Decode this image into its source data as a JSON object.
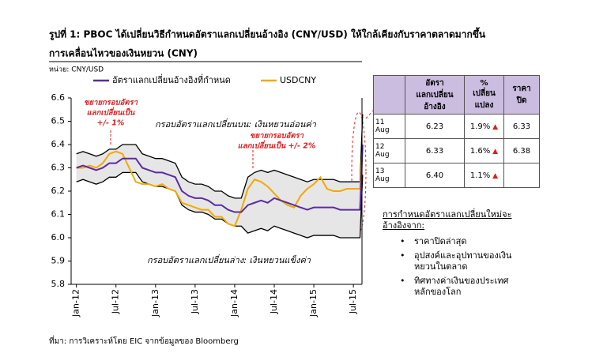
{
  "header": {
    "title": "รูปที่ 1: PBOC ได้เปลี่ยนวิธีกำหนดอัตราแลกเปลี่ยนอ้างอิง (CNY/USD) ให้ใกล้เคียงกับราคาตลาดมากขึ้น",
    "subtitle": "การเคลื่อนไหวของเงินหยวน (CNY)",
    "unit": "หน่วย: CNY/USD"
  },
  "chart_data": {
    "type": "line",
    "x": [
      0,
      1,
      2,
      3,
      4,
      5,
      6,
      7,
      8,
      9,
      10,
      11,
      12,
      13,
      14,
      15,
      16,
      17,
      18,
      19,
      20,
      21,
      22,
      23,
      24,
      25,
      26,
      27,
      28,
      29,
      30,
      31,
      32,
      33,
      34,
      35,
      36,
      37,
      38,
      39,
      40,
      41,
      42,
      43,
      43.4
    ],
    "series": [
      {
        "name": "อัตราแลกเปลี่ยนอ้างอิงที่กำหนด",
        "color": "#5b2c9f",
        "values": [
          6.3,
          6.31,
          6.3,
          6.29,
          6.3,
          6.32,
          6.32,
          6.34,
          6.34,
          6.34,
          6.3,
          6.29,
          6.28,
          6.28,
          6.27,
          6.26,
          6.2,
          6.18,
          6.17,
          6.17,
          6.16,
          6.14,
          6.14,
          6.12,
          6.11,
          6.11,
          6.14,
          6.15,
          6.16,
          6.15,
          6.17,
          6.16,
          6.15,
          6.14,
          6.13,
          6.12,
          6.13,
          6.13,
          6.13,
          6.13,
          6.12,
          6.12,
          6.12,
          6.12,
          6.4
        ]
      },
      {
        "name": "USDCNY",
        "color": "#f2a900",
        "values": [
          6.3,
          6.3,
          6.31,
          6.3,
          6.32,
          6.36,
          6.37,
          6.36,
          6.3,
          6.24,
          6.23,
          6.23,
          6.22,
          6.23,
          6.21,
          6.2,
          6.15,
          6.14,
          6.13,
          6.12,
          6.12,
          6.09,
          6.09,
          6.06,
          6.05,
          6.12,
          6.21,
          6.25,
          6.24,
          6.22,
          6.19,
          6.16,
          6.14,
          6.13,
          6.18,
          6.21,
          6.23,
          6.26,
          6.21,
          6.2,
          6.2,
          6.21,
          6.21,
          6.21,
          6.39
        ]
      },
      {
        "color": "#000000",
        "values": [
          6.36,
          6.37,
          6.36,
          6.35,
          6.36,
          6.38,
          6.38,
          6.4,
          6.4,
          6.4,
          6.36,
          6.35,
          6.34,
          6.34,
          6.33,
          6.32,
          6.26,
          6.24,
          6.23,
          6.23,
          6.22,
          6.2,
          6.2,
          6.18,
          6.17,
          6.17,
          6.26,
          6.28,
          6.29,
          6.28,
          6.29,
          6.28,
          6.27,
          6.26,
          6.25,
          6.24,
          6.25,
          6.25,
          6.25,
          6.25,
          6.24,
          6.24,
          6.24,
          6.24,
          6.53
        ]
      },
      {
        "color": "#000000",
        "values": [
          6.24,
          6.25,
          6.24,
          6.23,
          6.24,
          6.26,
          6.26,
          6.28,
          6.28,
          6.28,
          6.24,
          6.23,
          6.22,
          6.22,
          6.21,
          6.2,
          6.14,
          6.12,
          6.11,
          6.11,
          6.1,
          6.08,
          6.08,
          6.06,
          6.05,
          6.05,
          6.02,
          6.03,
          6.04,
          6.03,
          6.05,
          6.04,
          6.03,
          6.02,
          6.01,
          6.0,
          6.01,
          6.01,
          6.01,
          6.01,
          6.0,
          6.0,
          6.0,
          6.0,
          6.27
        ]
      }
    ],
    "band_fill": "#e6e6e6",
    "xlim": [
      -0.8,
      43.3
    ],
    "xticks": [
      {
        "value": 0,
        "label": "Jan-12"
      },
      {
        "value": 6,
        "label": "Jul-12"
      },
      {
        "value": 12,
        "label": "Jan-13"
      },
      {
        "value": 18,
        "label": "Jul-13"
      },
      {
        "value": 24,
        "label": "Jan-14"
      },
      {
        "value": 30,
        "label": "Jul-14"
      },
      {
        "value": 36,
        "label": "Jan-15"
      },
      {
        "value": 42,
        "label": "Jul-15"
      }
    ],
    "ylim": [
      5.8,
      6.6
    ],
    "yticks": [
      5.8,
      5.9,
      {
        "value": 6,
        "label": "6.0"
      },
      6.1,
      6.2,
      6.3,
      6.4,
      6.5,
      6.6
    ],
    "grid": false,
    "annotations": [
      {
        "lines": [
          "ขยายกรอบอัตรา",
          "แลกเปลี่ยนเป็น",
          "+/- 1%"
        ],
        "color": "#e31a1c"
      },
      {
        "lines": [
          "กรอบอัตราแลกเปลี่ยนบน: เงินหยวนอ่อนค่า"
        ],
        "color": "#000000"
      },
      {
        "lines": [
          "ขยายกรอบอัตรา",
          "แลกเปลี่ยนเป็น +/- 2%"
        ],
        "color": "#e31a1c"
      },
      {
        "lines": [
          "กรอบอัตราแลกเปลี่ยนล่าง: เงินหยวนแข็งค่า"
        ],
        "color": "#000000"
      }
    ]
  },
  "table": {
    "header": [
      [
        "อัตรา",
        "แลกเปลี่ยน",
        "อ้างอิง"
      ],
      [
        "%",
        "เปลี่ยน",
        "แปลง"
      ],
      [
        "ราคา",
        "ปิด"
      ]
    ],
    "rows": [
      [
        [
          "11",
          "Aug"
        ],
        "6.23",
        "1.9%",
        "6.33"
      ],
      [
        [
          "12",
          "Aug"
        ],
        "6.33",
        "1.6%",
        "6.38"
      ],
      [
        [
          "13",
          "Aug"
        ],
        "6.40",
        "1.1%",
        null
      ]
    ]
  },
  "notes": {
    "heading": [
      "การกำหนดอัตราแลกเปลี่ยนใหม่จะ",
      "อ้างอิงจาก:"
    ],
    "items": [
      [
        "ราคาปิดล่าสุด"
      ],
      [
        "อุปสงค์และอุปทานของเงิน",
        "หยวนในตลาด"
      ],
      [
        "ทิศทางค่าเงินของประเทศ",
        "หลักของโลก"
      ]
    ]
  },
  "source": "ที่มา: การวิเคราะห์โดย EIC จากข้อมูลของ Bloomberg"
}
